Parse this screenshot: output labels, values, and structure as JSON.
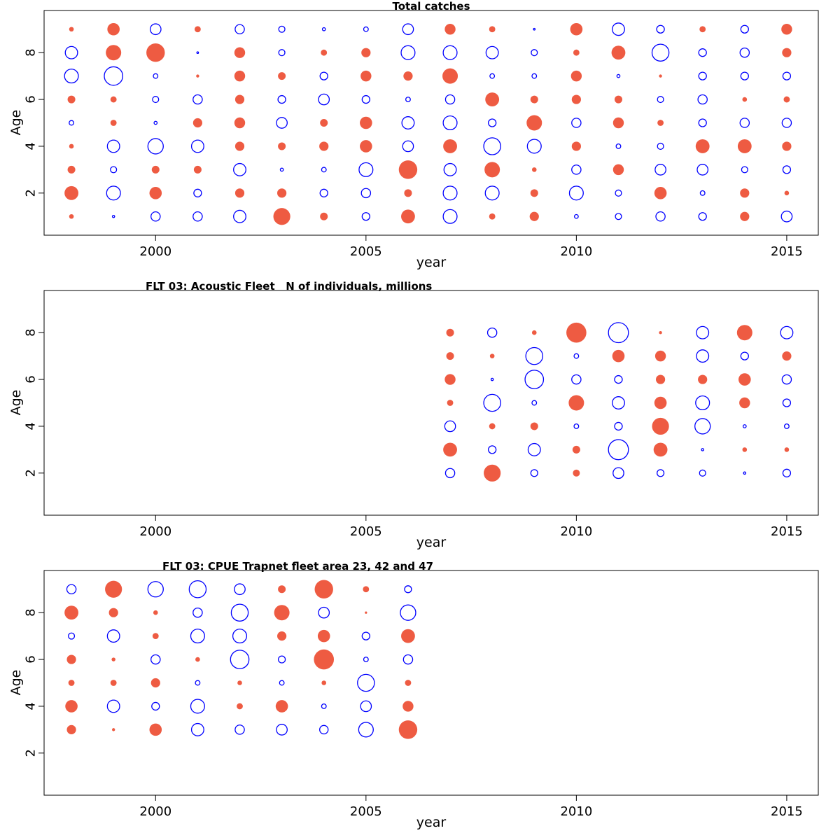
{
  "colors": {
    "positive": "#EE5B42",
    "negative": "#0000FF",
    "axis": "#000000"
  },
  "chart_data": [
    {
      "type": "bubble",
      "title": "Total catches",
      "xlabel": "year",
      "ylabel": "Age",
      "xlim": [
        1997.35,
        2015.75
      ],
      "ylim": [
        0.2,
        9.8
      ],
      "xticks": [
        2000,
        2005,
        2010,
        2015
      ],
      "yticks": [
        2,
        4,
        6,
        8
      ],
      "years": [
        1998,
        1999,
        2000,
        2001,
        2002,
        2003,
        2004,
        2005,
        2006,
        2007,
        2008,
        2009,
        2010,
        2011,
        2012,
        2013,
        2014,
        2015
      ],
      "ages": [
        1,
        2,
        3,
        4,
        5,
        6,
        7,
        8,
        9
      ],
      "residuals": {
        "9": [
          0.3,
          0.8,
          -0.7,
          0.4,
          -0.6,
          -0.4,
          -0.2,
          -0.3,
          -0.7,
          0.7,
          0.4,
          -0.1,
          0.8,
          -0.8,
          -0.5,
          0.4,
          -0.5,
          0.7
        ],
        "8": [
          -0.8,
          1.0,
          1.2,
          -0.1,
          0.7,
          -0.4,
          0.4,
          0.6,
          -0.9,
          -0.9,
          -0.8,
          -0.4,
          0.4,
          0.9,
          -1.1,
          -0.5,
          -0.6,
          0.6
        ],
        "7": [
          -0.9,
          -1.2,
          -0.3,
          0.2,
          0.7,
          0.5,
          -0.5,
          0.7,
          0.6,
          1.0,
          -0.3,
          -0.3,
          0.7,
          -0.2,
          0.2,
          -0.5,
          -0.5,
          -0.5
        ],
        "6": [
          0.5,
          0.4,
          -0.4,
          -0.6,
          0.6,
          -0.5,
          -0.7,
          -0.5,
          -0.3,
          -0.6,
          0.9,
          0.5,
          0.6,
          0.5,
          -0.4,
          -0.6,
          0.3,
          0.4
        ],
        "5": [
          -0.3,
          0.4,
          -0.2,
          0.6,
          0.7,
          -0.7,
          0.5,
          0.8,
          -0.8,
          -0.9,
          -0.5,
          1.0,
          -0.6,
          0.7,
          0.4,
          -0.5,
          -0.6,
          -0.6
        ],
        "4": [
          0.3,
          -0.8,
          -1.0,
          -0.8,
          0.6,
          0.5,
          0.6,
          0.8,
          -0.7,
          0.9,
          -1.1,
          -0.9,
          0.6,
          -0.3,
          -0.4,
          0.9,
          0.9,
          0.6
        ],
        "3": [
          0.5,
          -0.4,
          0.5,
          0.5,
          -0.8,
          -0.2,
          -0.3,
          -0.9,
          1.2,
          -0.8,
          1.0,
          0.3,
          -0.6,
          0.7,
          -0.7,
          -0.7,
          -0.4,
          -0.5
        ],
        "2": [
          0.9,
          -0.9,
          0.8,
          -0.5,
          0.6,
          0.6,
          -0.5,
          -0.6,
          0.5,
          -0.9,
          -0.9,
          0.5,
          -0.9,
          -0.4,
          0.8,
          -0.3,
          0.6,
          0.3
        ],
        "1": [
          0.3,
          -0.15,
          -0.6,
          -0.6,
          -0.8,
          1.1,
          0.5,
          -0.5,
          0.9,
          -0.9,
          0.4,
          0.6,
          -0.25,
          -0.4,
          -0.6,
          -0.5,
          0.6,
          -0.7
        ]
      }
    },
    {
      "type": "bubble",
      "title": "FLT 03: Acoustic Fleet   N of individuals, millions",
      "xlabel": "year",
      "ylabel": "Age",
      "xlim": [
        1997.35,
        2015.75
      ],
      "ylim": [
        0.2,
        9.8
      ],
      "xticks": [
        2000,
        2005,
        2010,
        2015
      ],
      "yticks": [
        2,
        4,
        6,
        8
      ],
      "years": [
        2007,
        2008,
        2009,
        2010,
        2011,
        2012,
        2013,
        2014,
        2015
      ],
      "ages": [
        2,
        3,
        4,
        5,
        6,
        7,
        8
      ],
      "residuals": {
        "8": [
          0.5,
          -0.6,
          0.3,
          1.3,
          -1.3,
          0.2,
          -0.8,
          1.0,
          -0.8
        ],
        "7": [
          0.5,
          0.3,
          -1.1,
          -0.3,
          0.8,
          0.7,
          -0.8,
          -0.5,
          0.6
        ],
        "6": [
          0.7,
          -0.15,
          -1.2,
          -0.6,
          -0.5,
          0.6,
          0.6,
          0.8,
          -0.6
        ],
        "5": [
          0.4,
          -1.1,
          -0.3,
          1.0,
          -0.8,
          0.8,
          -0.9,
          0.7,
          -0.5
        ],
        "4": [
          -0.7,
          0.4,
          0.5,
          -0.3,
          -0.5,
          1.1,
          -1.0,
          -0.2,
          -0.3
        ],
        "3": [
          0.9,
          -0.5,
          -0.8,
          0.5,
          -1.3,
          0.9,
          -0.15,
          0.3,
          0.3
        ],
        "2": [
          -0.6,
          1.1,
          -0.45,
          0.45,
          -0.7,
          -0.45,
          -0.4,
          -0.15,
          -0.5
        ]
      }
    },
    {
      "type": "bubble",
      "title": "FLT 03: CPUE Trapnet fleet area 23, 42 and 47",
      "xlabel": "year",
      "ylabel": "Age",
      "xlim": [
        1997.35,
        2015.75
      ],
      "ylim": [
        0.2,
        9.8
      ],
      "xticks": [
        2000,
        2005,
        2010,
        2015
      ],
      "yticks": [
        2,
        4,
        6,
        8
      ],
      "years": [
        1998,
        1999,
        2000,
        2001,
        2002,
        2003,
        2004,
        2005,
        2006
      ],
      "ages": [
        3,
        4,
        5,
        6,
        7,
        8,
        9
      ],
      "residuals": {
        "9": [
          -0.6,
          1.1,
          -1.0,
          -1.1,
          -0.7,
          0.5,
          1.2,
          0.4,
          -0.45
        ],
        "8": [
          0.9,
          0.6,
          0.3,
          -0.6,
          -1.1,
          1.0,
          -0.7,
          0.15,
          -1.0
        ],
        "7": [
          -0.4,
          -0.8,
          0.4,
          -0.9,
          -0.9,
          0.6,
          0.8,
          -0.5,
          0.9
        ],
        "6": [
          0.6,
          0.25,
          -0.6,
          0.3,
          -1.2,
          -0.45,
          1.3,
          -0.3,
          -0.6
        ],
        "5": [
          0.4,
          0.4,
          0.6,
          -0.3,
          0.3,
          -0.3,
          0.3,
          -1.1,
          0.4
        ],
        "4": [
          0.8,
          -0.8,
          -0.5,
          -0.9,
          0.4,
          0.8,
          -0.3,
          -0.7,
          0.7
        ],
        "3": [
          0.6,
          0.2,
          0.8,
          -0.8,
          -0.6,
          -0.7,
          -0.55,
          -0.95,
          1.2
        ]
      }
    }
  ]
}
